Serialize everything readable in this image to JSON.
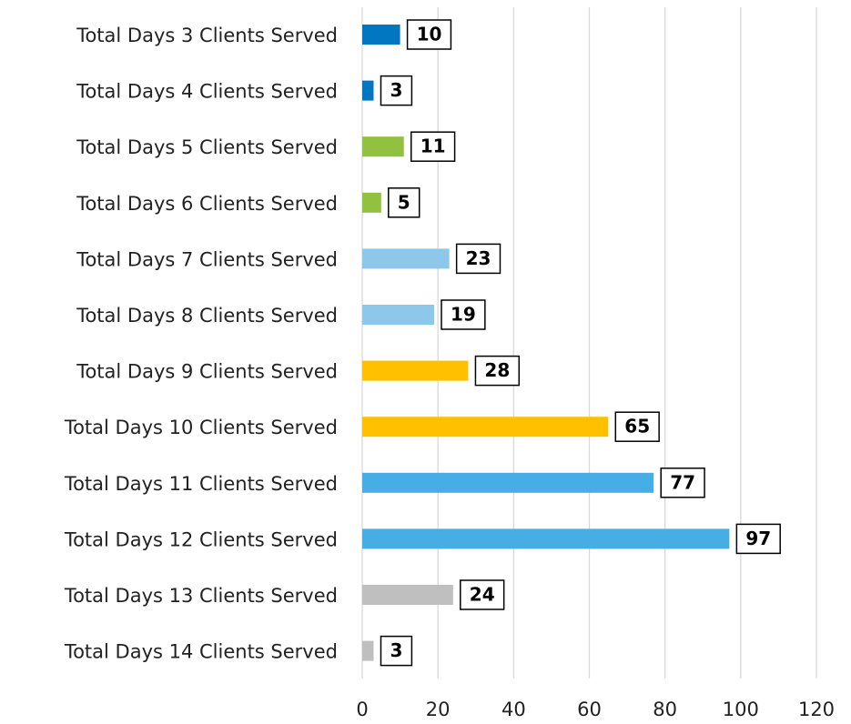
{
  "chart_data": {
    "type": "barh",
    "categories": [
      "Total Days 3 Clients Served",
      "Total Days 4 Clients Served",
      "Total Days 5 Clients Served",
      "Total Days 6 Clients Served",
      "Total Days 7 Clients Served",
      "Total Days 8 Clients Served",
      "Total Days 9 Clients Served",
      "Total Days 10 Clients Served",
      "Total Days 11 Clients Served",
      "Total Days 12 Clients Served",
      "Total Days 13 Clients Served",
      "Total Days 14 Clients Served"
    ],
    "values": [
      10,
      3,
      11,
      5,
      23,
      19,
      28,
      65,
      77,
      97,
      24,
      3
    ],
    "colors": [
      "#0077c0",
      "#0077c0",
      "#92c140",
      "#92c140",
      "#8dc8ea",
      "#8dc8ea",
      "#ffc000",
      "#ffc000",
      "#47aee5",
      "#47aee5",
      "#bfbfbf",
      "#bfbfbf"
    ],
    "xlim": [
      0,
      120
    ],
    "xticks": [
      0,
      20,
      40,
      60,
      80,
      100,
      120
    ],
    "grid": true
  }
}
